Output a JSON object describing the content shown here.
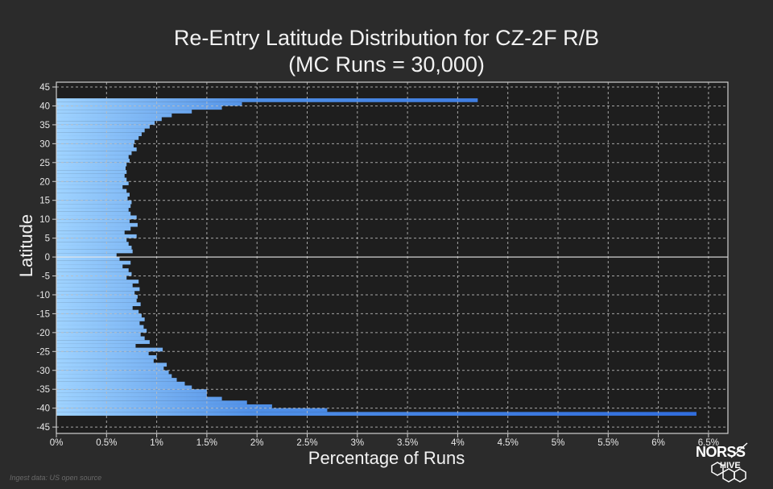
{
  "header": {
    "title_line1": "Re-Entry Latitude Distribution for CZ-2F R/B",
    "title_line2": "(MC Runs = 30,000)"
  },
  "footer": {
    "source_note": "Ingest data: US open source",
    "logo_top": "NORSS",
    "logo_bottom": "HIVE"
  },
  "colors": {
    "background": "#2b2b2b",
    "plot_background": "#1e1e1e",
    "grid": "#bdbdbd",
    "bar_light": "#9fd3ff",
    "bar_dark": "#2f6bdc"
  },
  "chart_data": {
    "type": "bar",
    "orientation": "horizontal",
    "title": "Re-Entry Latitude Distribution for CZ-2F R/B (MC Runs = 30,000)",
    "xlabel": "Percentage of Runs",
    "ylabel": "Latitude",
    "xlim": [
      0,
      6.6
    ],
    "ylim": [
      -46,
      45
    ],
    "xticks": [
      "0%",
      "0.5%",
      "1%",
      "1.5%",
      "2%",
      "2.5%",
      "3%",
      "3.5%",
      "4%",
      "4.5%",
      "5%",
      "5.5%",
      "6%",
      "6.5%"
    ],
    "xtick_values": [
      0,
      0.5,
      1,
      1.5,
      2,
      2.5,
      3,
      3.5,
      4,
      4.5,
      5,
      5.5,
      6,
      6.5
    ],
    "yticks": [
      45,
      40,
      35,
      30,
      25,
      20,
      15,
      10,
      5,
      0,
      -5,
      -10,
      -15,
      -20,
      -25,
      -30,
      -35,
      -40,
      -45
    ],
    "grid": true,
    "legend": "none",
    "bins": [
      {
        "lat": 41.5,
        "value": 4.2
      },
      {
        "lat": 40.5,
        "value": 1.85
      },
      {
        "lat": 39.5,
        "value": 1.65
      },
      {
        "lat": 38.5,
        "value": 1.35
      },
      {
        "lat": 37.5,
        "value": 1.15
      },
      {
        "lat": 36.5,
        "value": 1.05
      },
      {
        "lat": 35.5,
        "value": 0.98
      },
      {
        "lat": 34.5,
        "value": 0.93
      },
      {
        "lat": 33.5,
        "value": 0.88
      },
      {
        "lat": 32.5,
        "value": 0.85
      },
      {
        "lat": 31.5,
        "value": 0.82
      },
      {
        "lat": 30.5,
        "value": 0.78
      },
      {
        "lat": 29.5,
        "value": 0.77
      },
      {
        "lat": 28.5,
        "value": 0.8
      },
      {
        "lat": 27.5,
        "value": 0.75
      },
      {
        "lat": 26.5,
        "value": 0.72
      },
      {
        "lat": 25.5,
        "value": 0.73
      },
      {
        "lat": 24.5,
        "value": 0.7
      },
      {
        "lat": 23.5,
        "value": 0.69
      },
      {
        "lat": 22.5,
        "value": 0.7
      },
      {
        "lat": 21.5,
        "value": 0.68
      },
      {
        "lat": 20.5,
        "value": 0.7
      },
      {
        "lat": 19.5,
        "value": 0.72
      },
      {
        "lat": 18.5,
        "value": 0.66
      },
      {
        "lat": 17.5,
        "value": 0.7
      },
      {
        "lat": 16.5,
        "value": 0.73
      },
      {
        "lat": 15.5,
        "value": 0.71
      },
      {
        "lat": 14.5,
        "value": 0.75
      },
      {
        "lat": 13.5,
        "value": 0.74
      },
      {
        "lat": 12.5,
        "value": 0.72
      },
      {
        "lat": 11.5,
        "value": 0.74
      },
      {
        "lat": 10.5,
        "value": 0.8
      },
      {
        "lat": 9.5,
        "value": 0.73
      },
      {
        "lat": 8.5,
        "value": 0.81
      },
      {
        "lat": 7.5,
        "value": 0.74
      },
      {
        "lat": 6.5,
        "value": 0.68
      },
      {
        "lat": 5.5,
        "value": 0.8
      },
      {
        "lat": 4.5,
        "value": 0.7
      },
      {
        "lat": 3.5,
        "value": 0.72
      },
      {
        "lat": 2.5,
        "value": 0.75
      },
      {
        "lat": 1.5,
        "value": 0.76
      },
      {
        "lat": 0.5,
        "value": 0.6
      },
      {
        "lat": -0.5,
        "value": 0.63
      },
      {
        "lat": -1.5,
        "value": 0.74
      },
      {
        "lat": -2.5,
        "value": 0.66
      },
      {
        "lat": -3.5,
        "value": 0.72
      },
      {
        "lat": -4.5,
        "value": 0.75
      },
      {
        "lat": -5.5,
        "value": 0.7
      },
      {
        "lat": -6.5,
        "value": 0.82
      },
      {
        "lat": -7.5,
        "value": 0.76
      },
      {
        "lat": -8.5,
        "value": 0.83
      },
      {
        "lat": -9.5,
        "value": 0.78
      },
      {
        "lat": -10.5,
        "value": 0.81
      },
      {
        "lat": -11.5,
        "value": 0.8
      },
      {
        "lat": -12.5,
        "value": 0.84
      },
      {
        "lat": -13.5,
        "value": 0.76
      },
      {
        "lat": -14.5,
        "value": 0.82
      },
      {
        "lat": -15.5,
        "value": 0.85
      },
      {
        "lat": -16.5,
        "value": 0.88
      },
      {
        "lat": -17.5,
        "value": 0.83
      },
      {
        "lat": -18.5,
        "value": 0.87
      },
      {
        "lat": -19.5,
        "value": 0.9
      },
      {
        "lat": -20.5,
        "value": 0.84
      },
      {
        "lat": -21.5,
        "value": 0.88
      },
      {
        "lat": -22.5,
        "value": 0.93
      },
      {
        "lat": -23.5,
        "value": 0.79
      },
      {
        "lat": -24.5,
        "value": 1.06
      },
      {
        "lat": -25.5,
        "value": 0.92
      },
      {
        "lat": -26.5,
        "value": 1.0
      },
      {
        "lat": -27.5,
        "value": 0.97
      },
      {
        "lat": -28.5,
        "value": 1.1
      },
      {
        "lat": -29.5,
        "value": 1.07
      },
      {
        "lat": -30.5,
        "value": 1.12
      },
      {
        "lat": -31.5,
        "value": 1.15
      },
      {
        "lat": -32.5,
        "value": 1.2
      },
      {
        "lat": -33.5,
        "value": 1.28
      },
      {
        "lat": -34.5,
        "value": 1.35
      },
      {
        "lat": -35.5,
        "value": 1.5
      },
      {
        "lat": -36.5,
        "value": 1.5
      },
      {
        "lat": -37.5,
        "value": 1.65
      },
      {
        "lat": -38.5,
        "value": 1.9
      },
      {
        "lat": -39.5,
        "value": 2.15
      },
      {
        "lat": -40.5,
        "value": 2.7
      },
      {
        "lat": -41.5,
        "value": 6.38
      }
    ]
  }
}
